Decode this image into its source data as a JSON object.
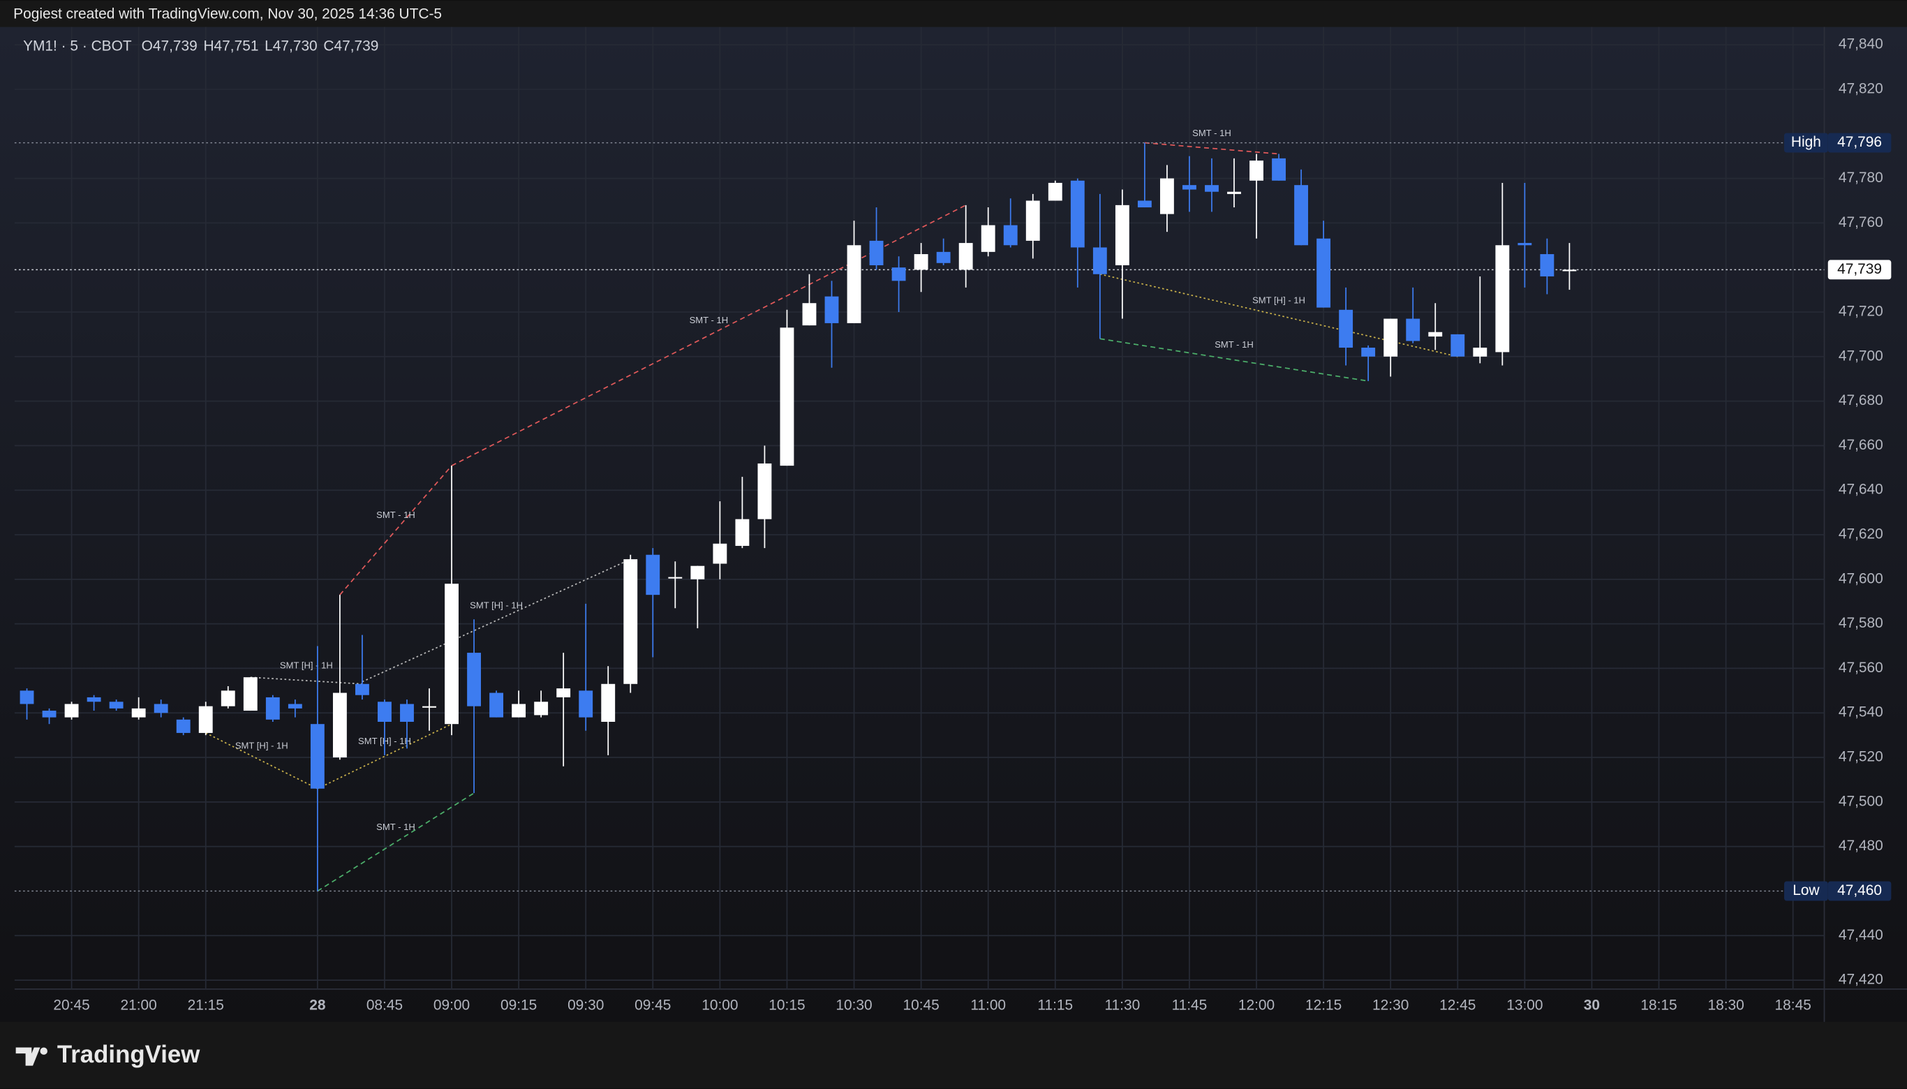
{
  "chart_data": {
    "type": "candlestick",
    "title": "Pogiest created with TradingView.com, Nov 30, 2025 14:36 UTC-5",
    "symbol": "YM1! · 5 · CBOT",
    "legend": [
      {
        "key": "O",
        "value": "47,739"
      },
      {
        "key": "H",
        "value": "47,751"
      },
      {
        "key": "L",
        "value": "47,730"
      },
      {
        "key": "C",
        "value": "47,739"
      }
    ],
    "brand": "TradingView",
    "x": [
      0,
      1,
      2,
      3,
      4,
      5,
      6,
      7,
      8,
      9,
      10,
      11,
      12,
      13,
      14,
      15,
      16,
      17,
      18,
      19,
      20,
      21,
      22,
      23,
      24,
      25,
      26,
      27,
      28,
      29,
      30,
      31,
      32,
      33,
      34,
      35,
      36,
      37,
      38,
      39,
      40,
      41,
      42,
      43,
      44,
      45,
      46,
      47,
      48,
      49,
      50,
      51,
      52,
      53,
      54,
      55,
      56,
      57,
      58,
      59,
      60,
      61,
      62,
      63,
      64,
      65,
      66,
      67,
      68,
      69
    ],
    "open": [
      47550,
      47541,
      47538,
      47547,
      47545,
      47538,
      47544,
      47537,
      47531,
      47543,
      47541,
      47547,
      47544,
      47535,
      47520,
      47553,
      47545,
      47544,
      47543,
      47535,
      47567,
      47549,
      47538,
      47539,
      47547,
      47550,
      47536,
      47553,
      47611,
      47601,
      47600,
      47607,
      47615,
      47627,
      47651,
      47714,
      47727,
      47715,
      47752,
      47740,
      47739,
      47747,
      47739,
      47747,
      47759,
      47752,
      47770,
      47779,
      47749,
      47741,
      47770,
      47764,
      47777,
      47777,
      47773,
      47779,
      47789,
      47777,
      47753,
      47721,
      47704,
      47700,
      47717,
      47709,
      47710,
      47700,
      47702,
      47751,
      47746,
      47739
    ],
    "high": [
      47551,
      47542,
      47545,
      47548,
      47546,
      47547,
      47546,
      47538,
      47545,
      47552,
      47556,
      47548,
      47546,
      47570,
      47593,
      47575,
      47546,
      47546,
      47551,
      47651,
      47582,
      47550,
      47550,
      47550,
      47567,
      47589,
      47561,
      47611,
      47614,
      47608,
      47606,
      47635,
      47646,
      47660,
      47721,
      47737,
      47734,
      47761,
      47767,
      47745,
      47751,
      47753,
      47768,
      47767,
      47771,
      47773,
      47779,
      47780,
      47773,
      47775,
      47796,
      47786,
      47790,
      47789,
      47789,
      47791,
      47791,
      47784,
      47761,
      47731,
      47705,
      47717,
      47731,
      47724,
      47710,
      47736,
      47778,
      47778,
      47753,
      47751
    ],
    "low": [
      47537,
      47535,
      47537,
      47541,
      47541,
      47537,
      47538,
      47530,
      47530,
      47542,
      47541,
      47536,
      47538,
      47460,
      47519,
      47546,
      47521,
      47524,
      47532,
      47530,
      47504,
      47538,
      47538,
      47538,
      47516,
      47532,
      47521,
      47549,
      47565,
      47587,
      47578,
      47600,
      47614,
      47614,
      47651,
      47714,
      47695,
      47715,
      47739,
      47720,
      47729,
      47741,
      47731,
      47745,
      47749,
      47744,
      47770,
      47731,
      47708,
      47717,
      47767,
      47756,
      47765,
      47765,
      47767,
      47753,
      47779,
      47750,
      47722,
      47696,
      47689,
      47691,
      47706,
      47703,
      47700,
      47697,
      47696,
      47731,
      47728,
      47730
    ],
    "close": [
      47544,
      47538,
      47544,
      47545,
      47542,
      47542,
      47540,
      47531,
      47543,
      47550,
      47556,
      47537,
      47542,
      47506,
      47549,
      47548,
      47536,
      47536,
      47543,
      47598,
      47543,
      47538,
      47544,
      47545,
      47551,
      47538,
      47553,
      47609,
      47593,
      47601,
      47606,
      47616,
      47627,
      47652,
      47713,
      47724,
      47715,
      47750,
      47741,
      47734,
      47746,
      47742,
      47751,
      47759,
      47750,
      47770,
      47778,
      47749,
      47737,
      47768,
      47767,
      47780,
      47775,
      47774,
      47774,
      47788,
      47779,
      47750,
      47722,
      47704,
      47700,
      47717,
      47707,
      47711,
      47700,
      47704,
      47750,
      47750,
      47736,
      47739
    ],
    "up_color": "#ffffff",
    "down_color": "#3d7cf0",
    "xlim": [
      -0.55,
      80.4
    ],
    "ylim": [
      47416,
      47848
    ],
    "grid": true,
    "xticks": [
      {
        "value": 2,
        "label": "20:45"
      },
      {
        "value": 5,
        "label": "21:00"
      },
      {
        "value": 8,
        "label": "21:15"
      },
      {
        "value": 13,
        "label": "28"
      },
      {
        "value": 16,
        "label": "08:45"
      },
      {
        "value": 19,
        "label": "09:00"
      },
      {
        "value": 22,
        "label": "09:15"
      },
      {
        "value": 25,
        "label": "09:30"
      },
      {
        "value": 28,
        "label": "09:45"
      },
      {
        "value": 31,
        "label": "10:00"
      },
      {
        "value": 34,
        "label": "10:15"
      },
      {
        "value": 37,
        "label": "10:30"
      },
      {
        "value": 40,
        "label": "10:45"
      },
      {
        "value": 43,
        "label": "11:00"
      },
      {
        "value": 46,
        "label": "11:15"
      },
      {
        "value": 49,
        "label": "11:30"
      },
      {
        "value": 52,
        "label": "11:45"
      },
      {
        "value": 55,
        "label": "12:00"
      },
      {
        "value": 58,
        "label": "12:15"
      },
      {
        "value": 61,
        "label": "12:30"
      },
      {
        "value": 64,
        "label": "12:45"
      },
      {
        "value": 67,
        "label": "13:00"
      },
      {
        "value": 70,
        "label": "30"
      },
      {
        "value": 73,
        "label": "18:15"
      },
      {
        "value": 76,
        "label": "18:30"
      },
      {
        "value": 79,
        "label": "18:45"
      }
    ],
    "yticks": [
      {
        "value": 47420,
        "label": "47,420"
      },
      {
        "value": 47440,
        "label": "47,440"
      },
      {
        "value": 47480,
        "label": "47,480"
      },
      {
        "value": 47500,
        "label": "47,500"
      },
      {
        "value": 47520,
        "label": "47,520"
      },
      {
        "value": 47540,
        "label": "47,540"
      },
      {
        "value": 47560,
        "label": "47,560"
      },
      {
        "value": 47580,
        "label": "47,580"
      },
      {
        "value": 47600,
        "label": "47,600"
      },
      {
        "value": 47620,
        "label": "47,620"
      },
      {
        "value": 47640,
        "label": "47,640"
      },
      {
        "value": 47660,
        "label": "47,660"
      },
      {
        "value": 47680,
        "label": "47,680"
      },
      {
        "value": 47700,
        "label": "47,700"
      },
      {
        "value": 47720,
        "label": "47,720"
      },
      {
        "value": 47760,
        "label": "47,760"
      },
      {
        "value": 47780,
        "label": "47,780"
      },
      {
        "value": 47820,
        "label": "47,820"
      },
      {
        "value": 47840,
        "label": "47,840"
      }
    ],
    "price_lines": [
      {
        "label": "High",
        "value": 47796,
        "value_label": "47,796",
        "style": "marker"
      },
      {
        "value": 47739,
        "value_label": "47,739",
        "style": "current"
      },
      {
        "label": "Low",
        "value": 47460,
        "value_label": "47,460",
        "style": "marker"
      }
    ],
    "annotations": [
      {
        "text": "SMT - 1H",
        "x": [
          14,
          19
        ],
        "y": [
          47593,
          47651
        ],
        "color": "#e0595a",
        "dash": "dashed"
      },
      {
        "text": "SMT - 1H",
        "x": [
          19,
          42
        ],
        "y": [
          47651,
          47768
        ],
        "color": "#e0595a",
        "dash": "dashed"
      },
      {
        "text": "SMT - 1H",
        "x": [
          50,
          56
        ],
        "y": [
          47796,
          47791
        ],
        "color": "#e0595a",
        "dash": "dashed"
      },
      {
        "text": "SMT [H] - 1H",
        "x": [
          48,
          64
        ],
        "y": [
          47737,
          47700
        ],
        "color": "#c8b04a",
        "dash": "dotted"
      },
      {
        "text": "SMT - 1H",
        "x": [
          48,
          60
        ],
        "y": [
          47708,
          47689
        ],
        "color": "#4caf6a",
        "dash": "dashed"
      },
      {
        "text": "SMT [H] - 1H",
        "x": [
          15,
          27
        ],
        "y": [
          47554,
          47609
        ],
        "color": "#b8b8b8",
        "dash": "dotted"
      },
      {
        "text": "SMT [H] - 1H",
        "x": [
          10,
          15
        ],
        "y": [
          47556,
          47553
        ],
        "color": "#b8b8b8",
        "dash": "dotted"
      },
      {
        "text": "SMT [H] - 1H",
        "x": [
          8,
          13
        ],
        "y": [
          47531,
          47506
        ],
        "color": "#c8b04a",
        "dash": "dotted"
      },
      {
        "text": "SMT [H] - 1H",
        "x": [
          13,
          19
        ],
        "y": [
          47506,
          47535
        ],
        "color": "#c8b04a",
        "dash": "dotted"
      },
      {
        "text": "SMT - 1H",
        "x": [
          13,
          20
        ],
        "y": [
          47460,
          47504
        ],
        "color": "#4caf6a",
        "dash": "dashed"
      }
    ]
  }
}
